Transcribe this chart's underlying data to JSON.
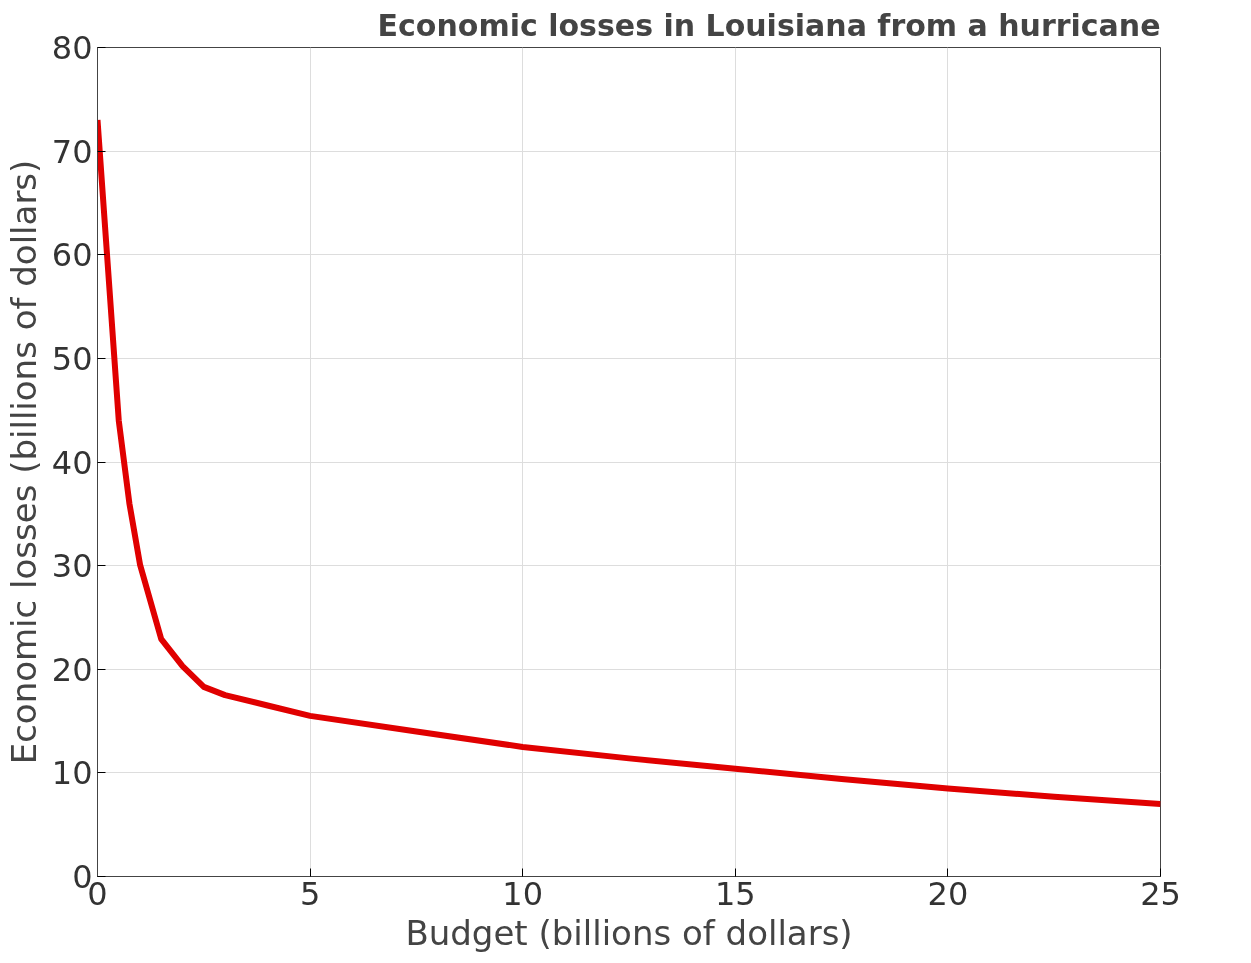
{
  "chart_data": {
    "type": "line",
    "title": "Economic losses in Louisiana from a hurricane",
    "xlabel": "Budget (billions of dollars)",
    "ylabel": "Economic losses (billions of dollars)",
    "x": [
      0,
      0.5,
      0.75,
      1,
      1.5,
      2,
      2.5,
      3,
      4,
      5,
      7.5,
      10,
      12.5,
      15,
      17.5,
      20,
      22.5,
      25
    ],
    "series": [
      {
        "color": "#e00000",
        "values": [
          73,
          44,
          36,
          30.1,
          22.9,
          20.3,
          18.3,
          17.5,
          16.5,
          15.5,
          14,
          12.5,
          11.4,
          10.4,
          9.4,
          8.5,
          7.7,
          7.0
        ]
      }
    ],
    "xlim": [
      0,
      25
    ],
    "ylim": [
      0,
      80
    ],
    "xticks": [
      0,
      5,
      10,
      15,
      20,
      25
    ],
    "yticks": [
      0,
      10,
      20,
      30,
      40,
      50,
      60,
      70,
      80
    ],
    "grid": true,
    "marker": "none",
    "line_style": "solid"
  }
}
